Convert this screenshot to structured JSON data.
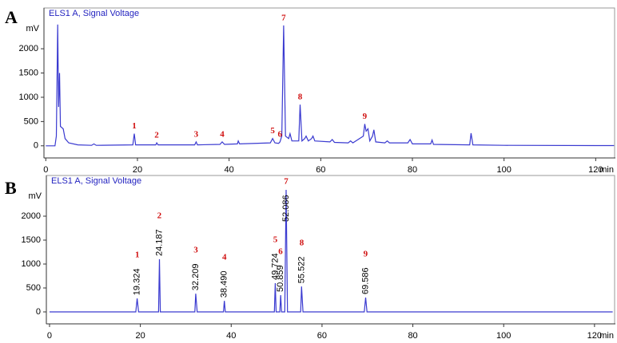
{
  "chart_data": [
    {
      "type": "line",
      "panel": "A",
      "title": "ELS1 A, Signal Voltage",
      "y_label": "mV",
      "x_label": "min",
      "color": "#3a3ad0",
      "xlim": [
        -0.4,
        124.3
      ],
      "ylim": [
        -250,
        2840
      ],
      "xticks": [
        0,
        20,
        40,
        60,
        80,
        100,
        120
      ],
      "yticks": [
        0,
        500,
        1000,
        1500,
        2000
      ],
      "x": [
        0,
        2.0,
        2.3,
        2.6,
        2.8,
        3.0,
        3.2,
        3.8,
        4.2,
        5,
        7,
        10,
        10.5,
        11,
        19,
        19.3,
        19.6,
        24,
        24.2,
        24.5,
        32.5,
        32.8,
        33.1,
        38,
        38.5,
        39,
        41.8,
        42,
        42.3,
        49,
        49.5,
        50,
        50.8,
        51.1,
        51.5,
        51.9,
        52.3,
        53,
        53.3,
        53.7,
        55.2,
        55.5,
        55.9,
        56.5,
        56.8,
        57.3,
        58,
        58.3,
        58.7,
        62,
        62.5,
        63,
        66,
        66.5,
        67,
        69.3,
        69.6,
        69.9,
        70.3,
        70.7,
        71.3,
        71.6,
        72,
        74,
        74.5,
        75,
        79,
        79.5,
        80,
        84,
        84.3,
        84.6,
        92.5,
        92.8,
        93.2,
        100,
        120,
        124
      ],
      "values": [
        0,
        0,
        200,
        2500,
        800,
        1500,
        400,
        350,
        150,
        60,
        20,
        10,
        40,
        10,
        20,
        250,
        20,
        20,
        60,
        20,
        20,
        80,
        20,
        30,
        80,
        30,
        40,
        100,
        40,
        60,
        150,
        60,
        50,
        80,
        200,
        2480,
        200,
        150,
        250,
        100,
        100,
        850,
        100,
        150,
        200,
        100,
        150,
        200,
        100,
        80,
        130,
        70,
        60,
        100,
        60,
        200,
        450,
        300,
        350,
        100,
        200,
        330,
        80,
        60,
        100,
        60,
        60,
        130,
        40,
        40,
        120,
        30,
        20,
        260,
        20,
        10,
        5,
        5
      ],
      "peaks": [
        {
          "label": "1",
          "x": 19.3
        },
        {
          "label": "2",
          "x": 24.2
        },
        {
          "label": "3",
          "x": 32.8
        },
        {
          "label": "4",
          "x": 38.5
        },
        {
          "label": "5",
          "x": 49.5
        },
        {
          "label": "6",
          "x": 51.1
        },
        {
          "label": "7",
          "x": 51.9
        },
        {
          "label": "8",
          "x": 55.5
        },
        {
          "label": "9",
          "x": 69.6
        }
      ]
    },
    {
      "type": "line",
      "panel": "B",
      "title": "ELS1 A, Signal Voltage",
      "y_label": "mV",
      "x_label": "min",
      "color": "#3a3ad0",
      "xlim": [
        -0.7,
        124.6
      ],
      "ylim": [
        -250,
        2850
      ],
      "xticks": [
        0,
        20,
        40,
        60,
        80,
        100,
        120
      ],
      "yticks": [
        0,
        500,
        1000,
        1500,
        2000
      ],
      "x": [
        0,
        19.0,
        19.3,
        19.6,
        24.0,
        24.2,
        24.4,
        32.0,
        32.2,
        32.5,
        38.3,
        38.5,
        38.7,
        49.5,
        49.7,
        49.9,
        50.7,
        50.9,
        51.1,
        51.8,
        52.1,
        52.4,
        55.3,
        55.5,
        55.8,
        69.3,
        69.6,
        69.9,
        124
      ],
      "values": [
        0,
        0,
        280,
        0,
        0,
        1100,
        0,
        0,
        380,
        0,
        0,
        230,
        0,
        0,
        600,
        0,
        0,
        350,
        0,
        0,
        2550,
        0,
        0,
        530,
        0,
        0,
        300,
        0,
        0
      ],
      "peaks": [
        {
          "label": "1",
          "time": 19.324
        },
        {
          "label": "2",
          "time": 24.187
        },
        {
          "label": "3",
          "time": 32.209
        },
        {
          "label": "4",
          "time": {
            "value": 38.49,
            "label": "38.490"
          }
        },
        {
          "label": "5",
          "time": 49.724
        },
        {
          "label": "6",
          "time": 50.859
        },
        {
          "label": "7",
          "time": 52.086
        },
        {
          "label": "8",
          "time": 55.522
        },
        {
          "label": "9",
          "time": 69.586
        }
      ]
    }
  ]
}
